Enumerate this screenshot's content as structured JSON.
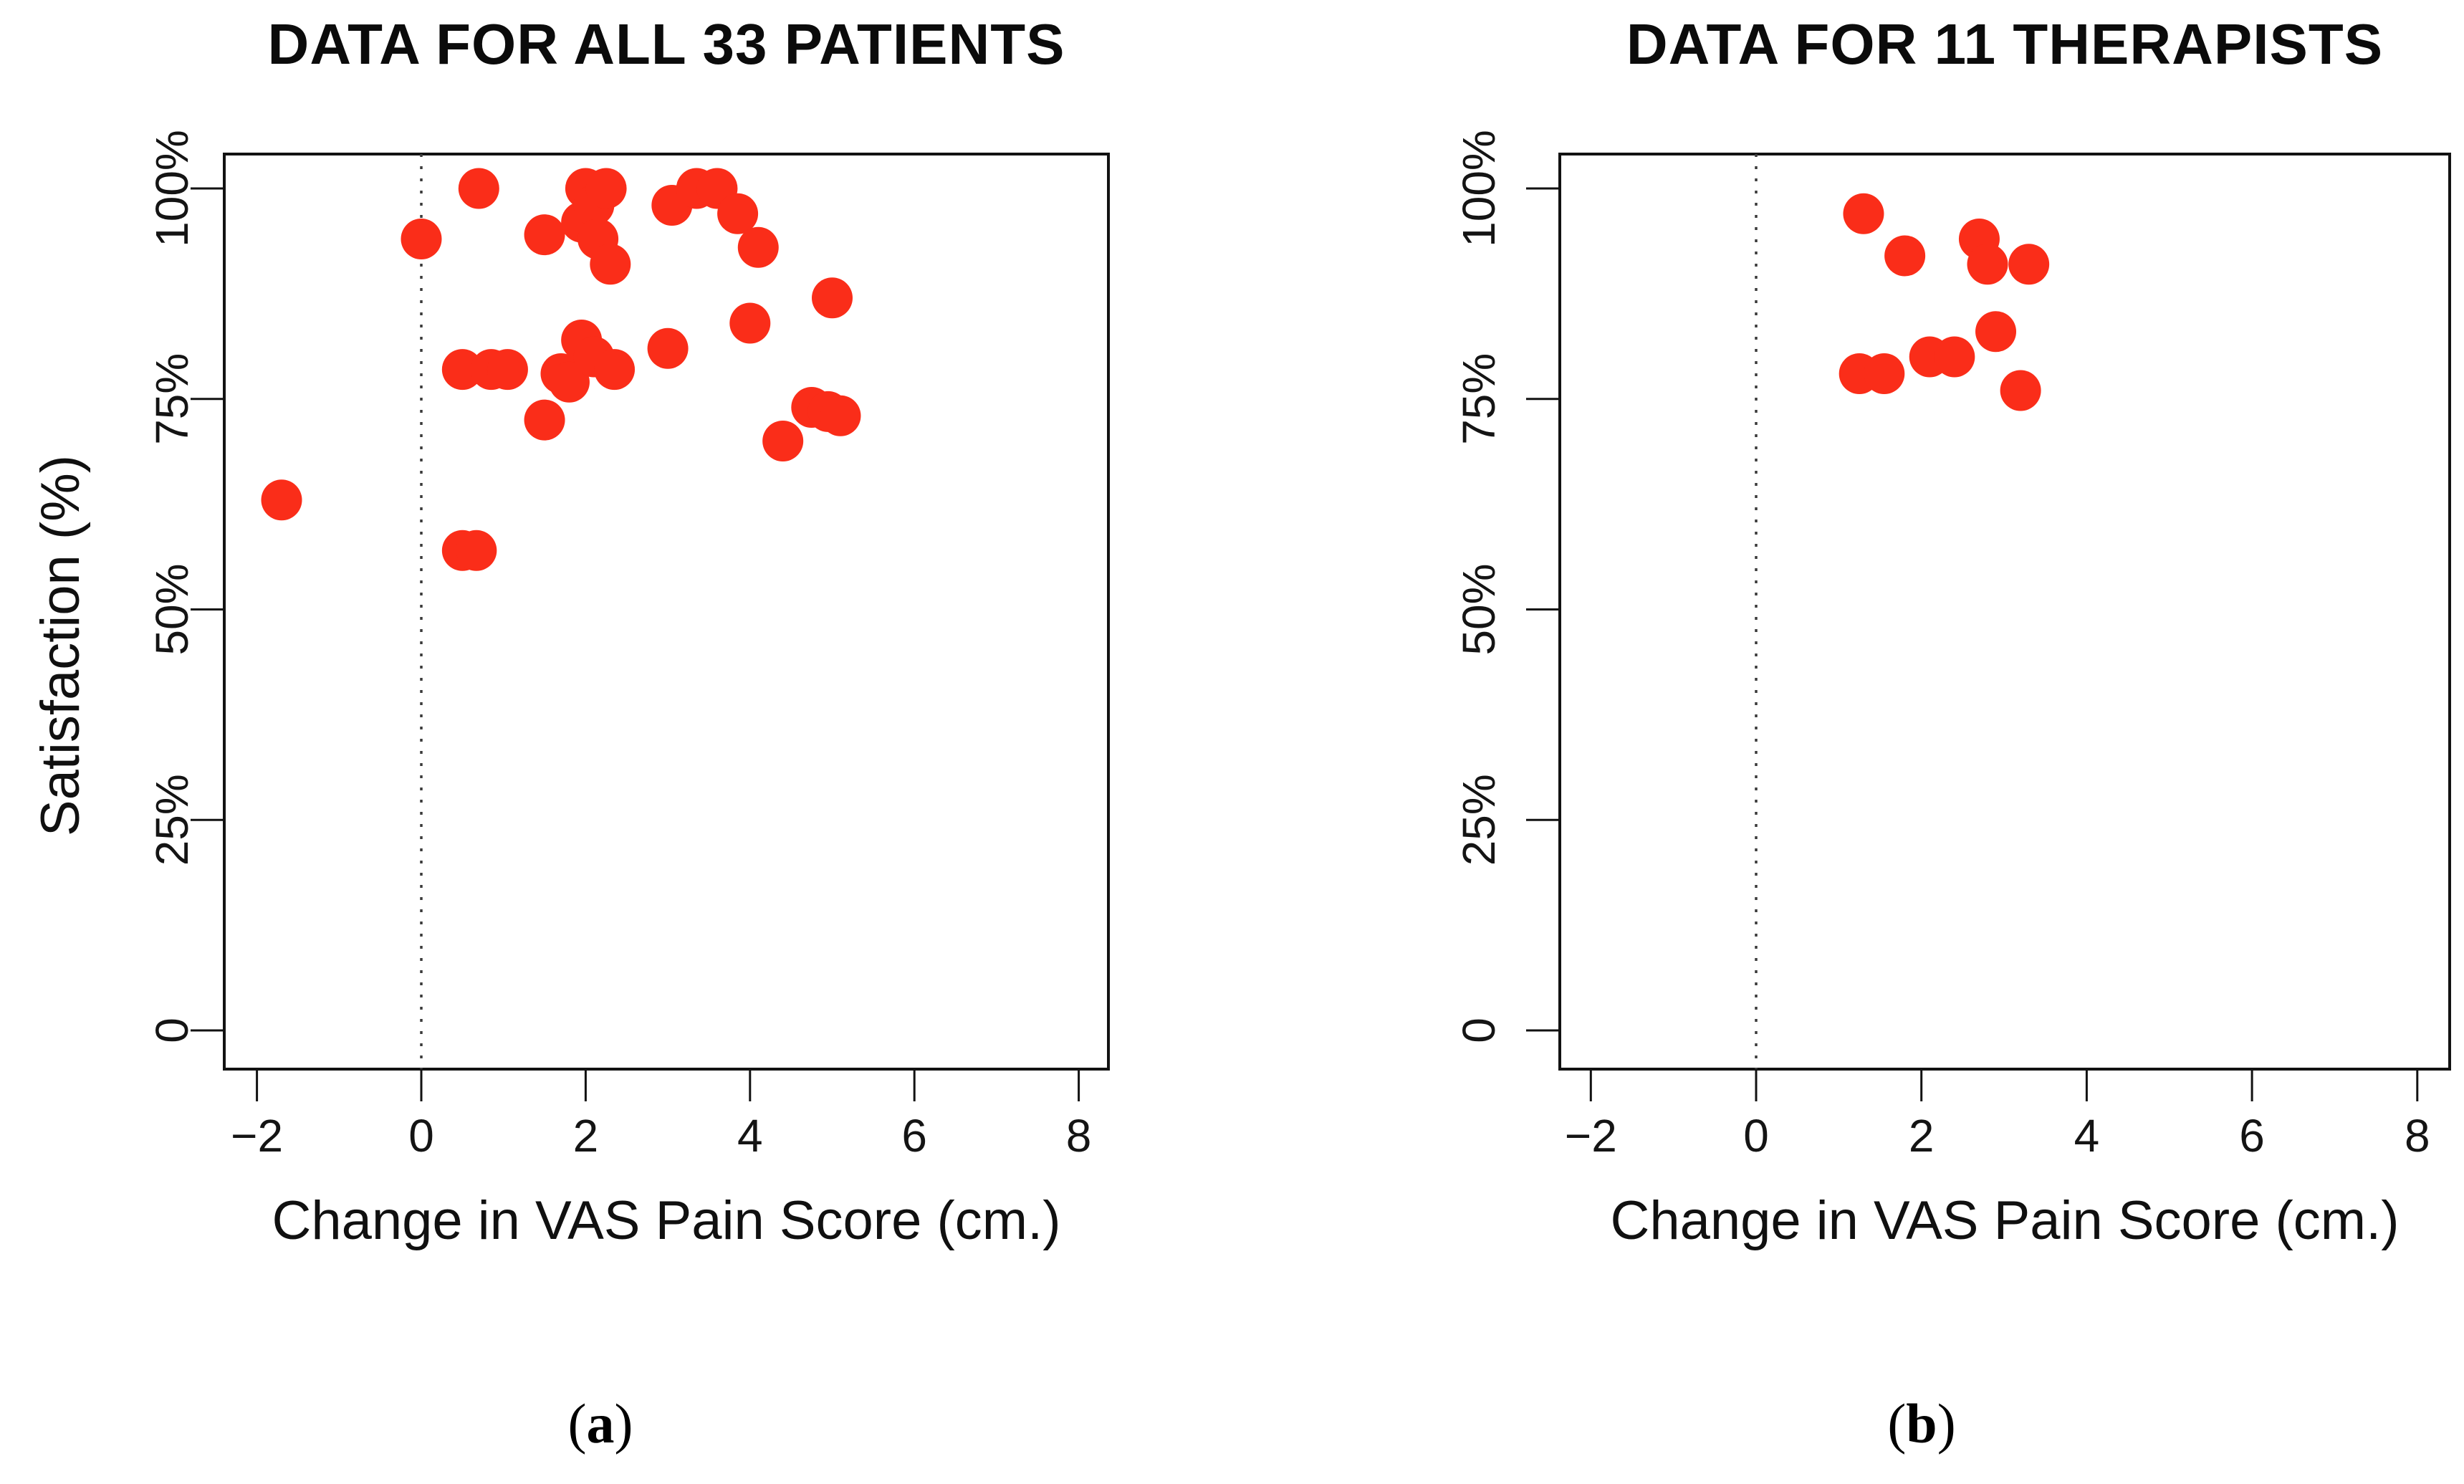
{
  "colors": {
    "dot": "#fa2d19",
    "axis": "#121212",
    "reference_line": "#3a3a3a",
    "background": "#ffffff"
  },
  "captions": [
    {
      "open": "(",
      "letter": "a",
      "close": ")"
    },
    {
      "open": "(",
      "letter": "b",
      "close": ")"
    }
  ],
  "chart_data": [
    {
      "type": "scatter",
      "title": "DATA FOR ALL 33 PATIENTS",
      "xlabel": "Change in VAS Pain Score (cm.)",
      "ylabel": "Satisfaction (%)",
      "xlim": [
        -2.4,
        8.4
      ],
      "ylim": [
        -5,
        104
      ],
      "x_ticks": {
        "values": [
          -2,
          0,
          2,
          4,
          6,
          8
        ],
        "labels": [
          "−2",
          "0",
          "2",
          "4",
          "6",
          "8"
        ]
      },
      "y_ticks": {
        "values": [
          100,
          75,
          50,
          25,
          0
        ],
        "labels": [
          "100%",
          "75%",
          "50%",
          "25%",
          "0"
        ]
      },
      "reference_line_x": 0,
      "grid": false,
      "legend": "none",
      "marker": "filled-circle",
      "points": [
        [
          -1.7,
          63
        ],
        [
          0,
          94
        ],
        [
          0.7,
          100
        ],
        [
          1.5,
          94.5
        ],
        [
          1.95,
          96
        ],
        [
          2.0,
          100
        ],
        [
          2.1,
          98
        ],
        [
          2.15,
          94
        ],
        [
          2.25,
          100
        ],
        [
          2.3,
          91
        ],
        [
          3.05,
          98
        ],
        [
          3.35,
          100
        ],
        [
          3.6,
          100
        ],
        [
          3.85,
          97
        ],
        [
          4.1,
          93
        ],
        [
          5.0,
          87
        ],
        [
          4.0,
          84
        ],
        [
          3.0,
          81
        ],
        [
          0.5,
          78.5
        ],
        [
          0.85,
          78.5
        ],
        [
          1.05,
          78.5
        ],
        [
          1.7,
          78
        ],
        [
          1.8,
          77
        ],
        [
          1.95,
          82
        ],
        [
          2.1,
          80
        ],
        [
          2.35,
          78.5
        ],
        [
          1.5,
          72.5
        ],
        [
          4.75,
          74
        ],
        [
          4.95,
          73.5
        ],
        [
          5.1,
          73
        ],
        [
          4.4,
          70
        ],
        [
          0.5,
          57
        ],
        [
          0.67,
          57
        ]
      ]
    },
    {
      "type": "scatter",
      "title": "DATA FOR 11 THERAPISTS",
      "xlabel": "Change in VAS Pain Score (cm.)",
      "ylabel": "",
      "xlim": [
        -2.4,
        8.4
      ],
      "ylim": [
        -5,
        104
      ],
      "x_ticks": {
        "values": [
          -2,
          0,
          2,
          4,
          6,
          8
        ],
        "labels": [
          "−2",
          "0",
          "2",
          "4",
          "6",
          "8"
        ]
      },
      "y_ticks": {
        "values": [
          100,
          75,
          50,
          25,
          0
        ],
        "labels": [
          "100%",
          "75%",
          "50%",
          "25%",
          "0"
        ]
      },
      "reference_line_x": 0,
      "grid": false,
      "legend": "none",
      "marker": "filled-circle",
      "points": [
        [
          1.3,
          97
        ],
        [
          1.8,
          92
        ],
        [
          2.7,
          94
        ],
        [
          2.8,
          91
        ],
        [
          3.3,
          91
        ],
        [
          2.9,
          83
        ],
        [
          2.1,
          80
        ],
        [
          2.4,
          80
        ],
        [
          1.25,
          78
        ],
        [
          1.55,
          78
        ],
        [
          3.2,
          76
        ]
      ]
    }
  ]
}
